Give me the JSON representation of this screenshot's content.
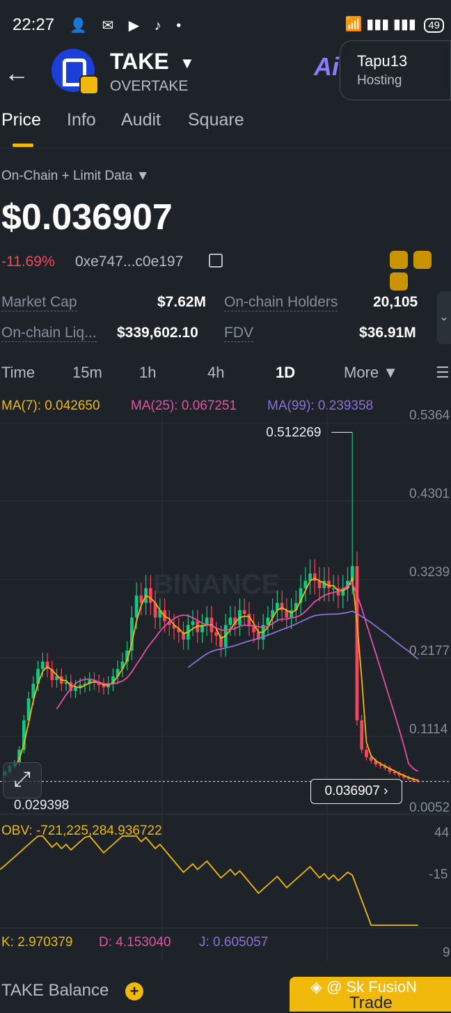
{
  "status_bar": {
    "time": "22:27",
    "icons": "👤 ✉ ▶ ♪ •",
    "signal": "📶 ▮▮▮ ▮▮▮",
    "battery": "49"
  },
  "header": {
    "back_icon": "←",
    "token_symbol": "TAKE",
    "caret": "▼",
    "token_name": "OVERTAKE",
    "ai": {
      "mark": "Ai",
      "username": "Tapu13",
      "role": "Hosting"
    }
  },
  "tabs": [
    {
      "label": "Price",
      "active": true
    },
    {
      "label": "Info"
    },
    {
      "label": "Audit"
    },
    {
      "label": "Square"
    }
  ],
  "source_selector": "On-Chain + Limit Data ▼",
  "price": "$0.036907",
  "change": "-11.69%",
  "address": "0xe747...c0e197",
  "stats": {
    "market_cap_label": "Market Cap",
    "market_cap": "$7.62M",
    "holders_label": "On-chain Holders",
    "holders": "20,105",
    "liquidity_label": "On-chain Liq...",
    "liquidity": "$339,602.10",
    "fdv_label": "FDV",
    "fdv": "$36.91M",
    "expand_icon": "⌄"
  },
  "timeframes": [
    {
      "label": "Time"
    },
    {
      "label": "15m"
    },
    {
      "label": "1h"
    },
    {
      "label": "4h"
    },
    {
      "label": "1D",
      "active": true
    },
    {
      "label": "More ▼"
    }
  ],
  "indicators": {
    "ma7": "MA(7): 0.042650",
    "ma25": "MA(25): 0.067251",
    "ma99": "MA(99): 0.239358",
    "obv": "OBV: -721,225,284.936722",
    "k": "K: 2.970379",
    "d": "D: 4.153040",
    "j": "J: 0.605057"
  },
  "chart_data": {
    "type": "candlestick",
    "y_axis_labels": [
      "0.5364",
      "0.4301",
      "0.3239",
      "0.2177",
      "0.1114",
      "0.0052"
    ],
    "ylim": [
      0.0052,
      0.5364
    ],
    "high_marker": "0.512269",
    "low_marker": "0.029398",
    "current_price": "0.036907",
    "close": [
      0.05,
      0.058,
      0.062,
      0.08,
      0.12,
      0.15,
      0.17,
      0.19,
      0.2,
      0.19,
      0.175,
      0.18,
      0.17,
      0.172,
      0.16,
      0.165,
      0.168,
      0.17,
      0.175,
      0.172,
      0.168,
      0.165,
      0.17,
      0.18,
      0.19,
      0.2,
      0.215,
      0.26,
      0.29,
      0.28,
      0.3,
      0.28,
      0.26,
      0.27,
      0.255,
      0.25,
      0.245,
      0.24,
      0.23,
      0.25,
      0.255,
      0.24,
      0.25,
      0.26,
      0.24,
      0.235,
      0.22,
      0.25,
      0.26,
      0.25,
      0.27,
      0.265,
      0.25,
      0.24,
      0.23,
      0.25,
      0.26,
      0.27,
      0.28,
      0.27,
      0.26,
      0.27,
      0.28,
      0.3,
      0.31,
      0.32,
      0.31,
      0.3,
      0.31,
      0.3,
      0.3,
      0.29,
      0.3,
      0.31,
      0.33,
      0.12,
      0.08,
      0.07,
      0.065,
      0.06,
      0.058,
      0.055,
      0.05,
      0.048,
      0.045,
      0.042,
      0.04,
      0.038,
      0.036907
    ],
    "ma7_visible": true,
    "ma25_visible": true,
    "ma99_visible": true,
    "obv_axis_labels": [
      "44",
      "-15"
    ],
    "kdj_axis_label": "9",
    "colors": {
      "up": "#0ecb81",
      "down": "#f6465d",
      "ma7": "#f0b90b",
      "ma25": "#e84fa6",
      "ma99": "#8d6fdb"
    },
    "watermark": "BINANCE"
  },
  "bottom": {
    "balance_label": "TAKE Balance",
    "plus_icon": "+",
    "watermark": "◈ @    Sk FusioN",
    "trade_label": "Trade"
  }
}
